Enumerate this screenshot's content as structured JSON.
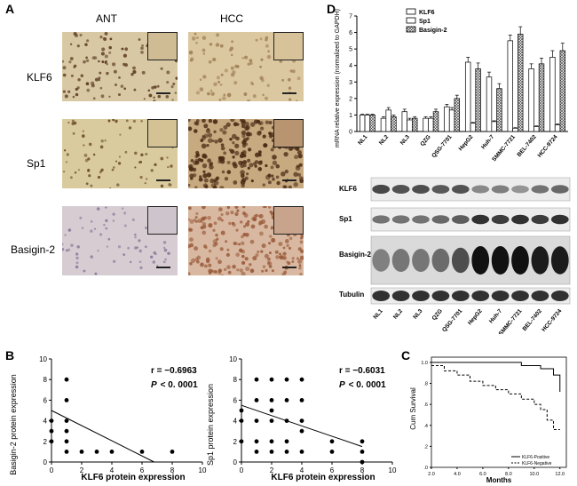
{
  "panel_labels": {
    "A": "A",
    "B": "B",
    "C": "C",
    "D": "D"
  },
  "panel_a": {
    "col_headers": [
      "ANT",
      "HCC"
    ],
    "row_labels": [
      "KLF6",
      "Sp1",
      "Basigin-2"
    ]
  },
  "panel_b": {
    "plot1": {
      "ylabel": "Basigin-2 protein expression",
      "xlabel": "KLF6 protein expression",
      "r_text": "r = −0.6963",
      "p_text": "< 0. 0001",
      "p_italic": "P"
    },
    "plot2": {
      "ylabel": "Sp1 protein expression",
      "xlabel": "KLF6 protein expression",
      "r_text": "r = −0.6031",
      "p_text": "< 0. 0001",
      "p_italic": "P"
    }
  },
  "panel_c": {
    "ylabel": "Cum Survival",
    "xlabel": "Months",
    "legend": [
      "KLF6-Positive",
      "KLF6-Negative"
    ]
  },
  "panel_d": {
    "ylabel": "mRNA relative expression (normalized to GAPDH)",
    "legend": [
      "KLF6",
      "Sp1",
      "Basigin-2"
    ],
    "blot_labels": [
      "KLF6",
      "Sp1",
      "Basigin-2",
      "Tubulin"
    ]
  },
  "chart_data": [
    {
      "type": "scatter",
      "title": "",
      "xlabel": "KLF6 protein expression",
      "ylabel": "Basigin-2 protein expression",
      "xlim": [
        0,
        10
      ],
      "ylim": [
        0,
        10
      ],
      "xticks": [
        0,
        2,
        4,
        6,
        8,
        10
      ],
      "yticks": [
        0,
        2,
        4,
        6,
        8,
        10
      ],
      "x": [
        0,
        0,
        0,
        1,
        1,
        1,
        1,
        1,
        1,
        2,
        3,
        4,
        6,
        8
      ],
      "y": [
        2,
        3,
        4,
        8,
        6,
        4,
        3,
        1,
        2,
        1,
        1,
        1,
        1,
        1
      ],
      "fit_line": {
        "x": [
          0,
          6.8
        ],
        "y": [
          5,
          0
        ]
      },
      "annotations": [
        "r = −0.6963",
        "P < 0. 0001"
      ]
    },
    {
      "type": "scatter",
      "title": "",
      "xlabel": "KLF6 protein expression",
      "ylabel": "Sp1 protein expression",
      "xlim": [
        0,
        10
      ],
      "ylim": [
        0,
        10
      ],
      "xticks": [
        0,
        2,
        4,
        6,
        8,
        10
      ],
      "yticks": [
        0,
        2,
        4,
        6,
        8,
        10
      ],
      "x": [
        0,
        0,
        0,
        1,
        1,
        1,
        1,
        1,
        2,
        2,
        2,
        2,
        2,
        2,
        3,
        3,
        3,
        3,
        3,
        4,
        4,
        4,
        4,
        4,
        6,
        6,
        8,
        8,
        8
      ],
      "y": [
        2,
        4,
        5,
        8,
        6,
        4,
        2,
        1,
        8,
        6,
        5,
        4,
        2,
        1,
        8,
        6,
        4,
        2,
        1,
        8,
        6,
        4,
        3,
        1,
        2,
        1,
        2,
        1,
        0
      ],
      "fit_line": {
        "x": [
          0,
          8
        ],
        "y": [
          5.5,
          1.5
        ]
      },
      "annotations": [
        "r = −0.6031",
        "P < 0. 0001"
      ]
    },
    {
      "type": "line",
      "title": "",
      "xlabel": "Months",
      "ylabel": "Cum Survival",
      "xlim": [
        2,
        12.5
      ],
      "ylim": [
        0,
        1.05
      ],
      "xticks": [
        2,
        4,
        6,
        8,
        10,
        12
      ],
      "xtick_labels": [
        "2.0",
        "4.0",
        "6.0",
        "8.0",
        "10.0",
        "12.0"
      ],
      "yticks": [
        0,
        0.2,
        0.4,
        0.6,
        0.8,
        1.0
      ],
      "ytick_labels": [
        ".0",
        ".2",
        ".4",
        ".6",
        ".8",
        "1.0"
      ],
      "series": [
        {
          "name": "KLF6-Positive",
          "x": [
            2,
            7,
            9,
            10.5,
            11.5,
            12
          ],
          "y": [
            1.0,
            1.0,
            0.97,
            0.94,
            0.88,
            0.72
          ]
        },
        {
          "name": "KLF6-Negative",
          "x": [
            2,
            3,
            4,
            5,
            6,
            7,
            8,
            9,
            10,
            10.5,
            11,
            11.5,
            12
          ],
          "y": [
            0.97,
            0.92,
            0.88,
            0.82,
            0.78,
            0.74,
            0.7,
            0.65,
            0.6,
            0.55,
            0.45,
            0.36,
            0.36
          ]
        }
      ]
    },
    {
      "type": "bar",
      "title": "",
      "ylabel": "mRNA relative expression (normalized to GAPDH)",
      "categories": [
        "NL1",
        "NL2",
        "NL3",
        "QZG",
        "QSG-7701",
        "HepG2",
        "Huh-7",
        "SMMC-7721",
        "BEL-7402",
        "HCC-9724"
      ],
      "ylim": [
        0,
        7
      ],
      "yticks": [
        0,
        1,
        2,
        3,
        4,
        5,
        6,
        7
      ],
      "series": [
        {
          "name": "KLF6",
          "values": [
            1.0,
            0.8,
            1.2,
            0.8,
            1.5,
            4.2,
            3.3,
            5.5,
            3.8,
            4.5
          ]
        },
        {
          "name": "Sp1",
          "values": [
            1.0,
            1.3,
            0.7,
            0.8,
            1.3,
            0.5,
            0.6,
            0.2,
            0.3,
            0.4
          ]
        },
        {
          "name": "Basigin-2",
          "values": [
            1.0,
            0.9,
            0.8,
            1.2,
            2.0,
            3.8,
            2.6,
            5.9,
            4.1,
            4.9
          ]
        }
      ],
      "errors": [
        [
          0.05,
          0.1,
          0.15,
          0.1,
          0.15,
          0.3,
          0.3,
          0.35,
          0.3,
          0.4
        ],
        [
          0.05,
          0.15,
          0.1,
          0.1,
          0.15,
          0.05,
          0.05,
          0.03,
          0.04,
          0.05
        ],
        [
          0.05,
          0.1,
          0.1,
          0.15,
          0.2,
          0.35,
          0.3,
          0.45,
          0.35,
          0.45
        ]
      ]
    }
  ]
}
